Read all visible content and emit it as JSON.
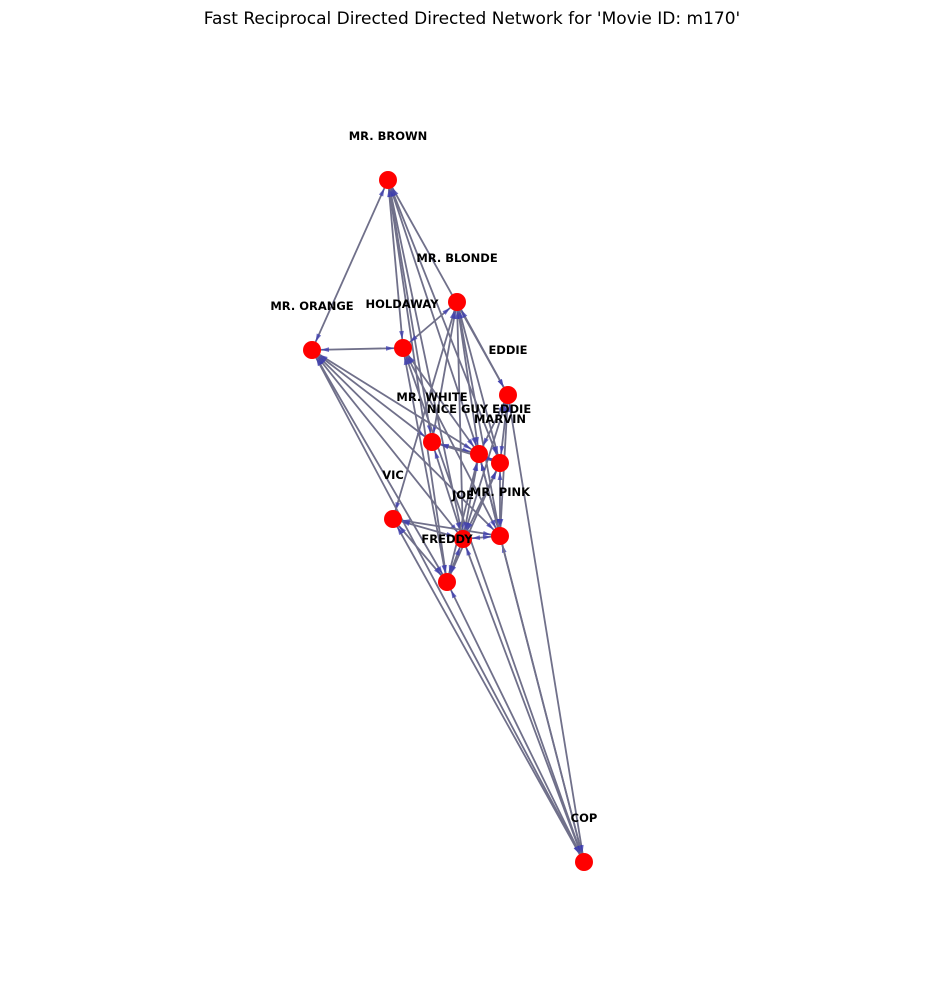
{
  "title": "Fast Reciprocal Directed Directed Network for 'Movie ID: m170'",
  "colors": {
    "node": "#ff0000",
    "edge": "#70708a",
    "arrow": "#3b3bb0",
    "label": "#000000",
    "background": "#ffffff"
  },
  "nodes": [
    {
      "id": "mr_brown",
      "label": "MR. BROWN"
    },
    {
      "id": "mr_blonde",
      "label": "MR. BLONDE"
    },
    {
      "id": "mr_orange",
      "label": "MR. ORANGE"
    },
    {
      "id": "holdaway",
      "label": "HOLDAWAY"
    },
    {
      "id": "eddie",
      "label": "EDDIE"
    },
    {
      "id": "mr_white",
      "label": "MR. WHITE"
    },
    {
      "id": "nice_guy_eddie",
      "label": "NICE GUY EDDIE"
    },
    {
      "id": "marvin",
      "label": "MARVIN"
    },
    {
      "id": "vic",
      "label": "VIC"
    },
    {
      "id": "joe",
      "label": "JOE"
    },
    {
      "id": "mr_pink",
      "label": "MR. PINK"
    },
    {
      "id": "freddy",
      "label": "FREDDY"
    },
    {
      "id": "cop",
      "label": "COP"
    }
  ],
  "edges": [
    [
      "mr_brown",
      "mr_orange"
    ],
    [
      "mr_brown",
      "holdaway"
    ],
    [
      "mr_brown",
      "mr_white"
    ],
    [
      "mr_brown",
      "nice_guy_eddie"
    ],
    [
      "mr_brown",
      "marvin"
    ],
    [
      "mr_brown",
      "eddie"
    ],
    [
      "mr_brown",
      "joe"
    ],
    [
      "mr_brown",
      "freddy"
    ],
    [
      "mr_blonde",
      "holdaway"
    ],
    [
      "mr_blonde",
      "eddie"
    ],
    [
      "mr_blonde",
      "mr_white"
    ],
    [
      "mr_blonde",
      "nice_guy_eddie"
    ],
    [
      "mr_blonde",
      "marvin"
    ],
    [
      "mr_blonde",
      "joe"
    ],
    [
      "mr_blonde",
      "mr_pink"
    ],
    [
      "mr_blonde",
      "vic"
    ],
    [
      "mr_orange",
      "holdaway"
    ],
    [
      "mr_orange",
      "nice_guy_eddie"
    ],
    [
      "mr_orange",
      "joe"
    ],
    [
      "mr_orange",
      "mr_pink"
    ],
    [
      "mr_orange",
      "freddy"
    ],
    [
      "mr_orange",
      "cop"
    ],
    [
      "mr_orange",
      "mr_white"
    ],
    [
      "holdaway",
      "mr_pink"
    ],
    [
      "holdaway",
      "freddy"
    ],
    [
      "holdaway",
      "cop"
    ],
    [
      "holdaway",
      "nice_guy_eddie"
    ],
    [
      "eddie",
      "nice_guy_eddie"
    ],
    [
      "eddie",
      "marvin"
    ],
    [
      "eddie",
      "mr_pink"
    ],
    [
      "eddie",
      "joe"
    ],
    [
      "eddie",
      "cop"
    ],
    [
      "mr_white",
      "nice_guy_eddie"
    ],
    [
      "mr_white",
      "marvin"
    ],
    [
      "mr_white",
      "joe"
    ],
    [
      "nice_guy_eddie",
      "marvin"
    ],
    [
      "nice_guy_eddie",
      "joe"
    ],
    [
      "nice_guy_eddie",
      "mr_pink"
    ],
    [
      "nice_guy_eddie",
      "freddy"
    ],
    [
      "marvin",
      "mr_pink"
    ],
    [
      "marvin",
      "freddy"
    ],
    [
      "marvin",
      "joe"
    ],
    [
      "vic",
      "joe"
    ],
    [
      "vic",
      "mr_pink"
    ],
    [
      "vic",
      "freddy"
    ],
    [
      "vic",
      "cop"
    ],
    [
      "joe",
      "mr_pink"
    ],
    [
      "joe",
      "freddy"
    ],
    [
      "joe",
      "cop"
    ],
    [
      "mr_pink",
      "cop"
    ],
    [
      "freddy",
      "cop"
    ],
    [
      "nice_guy_eddie",
      "cop"
    ]
  ]
}
